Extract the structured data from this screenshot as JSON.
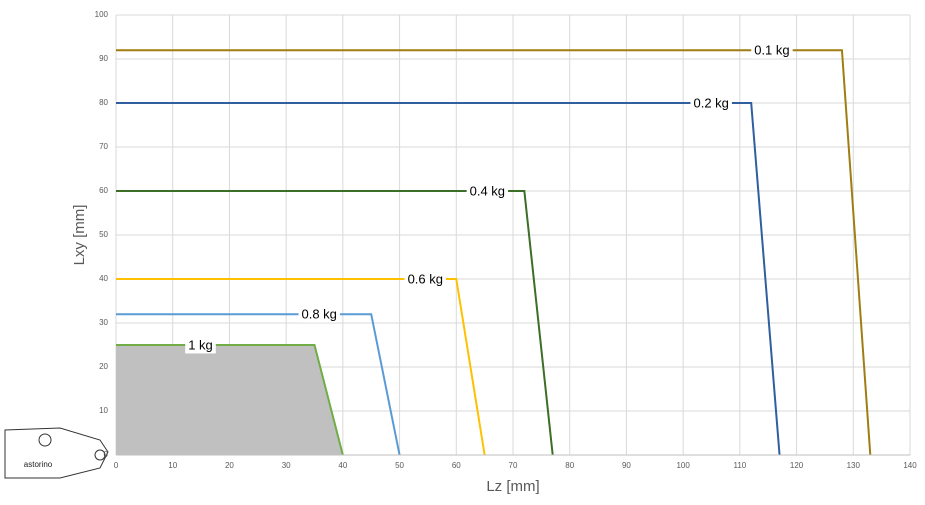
{
  "chart_data": {
    "type": "line",
    "x_label": "Lz [mm]",
    "y_label": "Lxy [mm]",
    "xlim": [
      0,
      140
    ],
    "xticks": [
      0,
      10,
      20,
      30,
      40,
      50,
      60,
      70,
      80,
      90,
      100,
      110,
      120,
      130,
      140
    ],
    "ylim": [
      0,
      100
    ],
    "yticks": [
      0,
      10,
      20,
      30,
      40,
      50,
      60,
      70,
      80,
      90,
      100
    ],
    "grid": true,
    "series": [
      {
        "name": "0.1 kg",
        "color": "#a07d14",
        "x": [
          0,
          128,
          133
        ],
        "values": [
          92,
          92,
          0
        ]
      },
      {
        "name": "0.2 kg",
        "color": "#2f5f9e",
        "x": [
          0,
          112,
          117
        ],
        "values": [
          80,
          80,
          0
        ]
      },
      {
        "name": "0.4 kg",
        "color": "#3b6e26",
        "x": [
          0,
          72,
          77
        ],
        "values": [
          60,
          60,
          0
        ]
      },
      {
        "name": "0.6 kg",
        "color": "#ffc000",
        "x": [
          0,
          60,
          65
        ],
        "values": [
          40,
          40,
          0
        ]
      },
      {
        "name": "0.8 kg",
        "color": "#5b9bd5",
        "x": [
          0,
          45,
          50
        ],
        "values": [
          32,
          32,
          0
        ]
      },
      {
        "name": "1 kg",
        "color": "#70ad47",
        "fill": "#c0c0c0",
        "x": [
          0,
          35,
          40
        ],
        "values": [
          25,
          25,
          0
        ]
      }
    ]
  },
  "logo": {
    "text": "astorino"
  }
}
